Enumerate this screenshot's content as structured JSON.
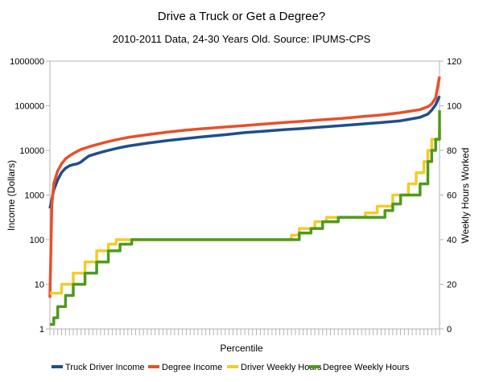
{
  "chart_data": {
    "type": "line",
    "title": "Drive a Truck or Get a Degree?",
    "subtitle": "2010-2011 Data, 24-30 Years Old. Source: IPUMS-CPS",
    "xlabel": "Percentile",
    "ylabel_left": "Income (Dollars)",
    "ylabel_right": "Weekly Hours Worked",
    "y_left_scale": "log",
    "y_left_ticks": [
      "1",
      "10",
      "100",
      "1000",
      "10000",
      "100000",
      "1000000"
    ],
    "y_left_range": [
      1,
      1000000
    ],
    "y_right_ticks": [
      "0",
      "20",
      "40",
      "60",
      "80",
      "100",
      "120"
    ],
    "y_right_range": [
      0,
      120
    ],
    "x_range": [
      0,
      100
    ],
    "grid": false,
    "legend_position": "bottom",
    "series": [
      {
        "name": "Truck Driver Income",
        "axis": "left",
        "color": "#1f4e8c",
        "points": [
          [
            0,
            500
          ],
          [
            1,
            1300
          ],
          [
            2,
            2200
          ],
          [
            3,
            3200
          ],
          [
            4,
            4000
          ],
          [
            5,
            4500
          ],
          [
            6,
            4800
          ],
          [
            7,
            5000
          ],
          [
            8,
            5500
          ],
          [
            9,
            6500
          ],
          [
            10,
            7500
          ],
          [
            12,
            8500
          ],
          [
            14,
            9500
          ],
          [
            16,
            10500
          ],
          [
            18,
            11500
          ],
          [
            20,
            12500
          ],
          [
            25,
            14500
          ],
          [
            30,
            16500
          ],
          [
            35,
            18500
          ],
          [
            40,
            20500
          ],
          [
            45,
            22500
          ],
          [
            50,
            25000
          ],
          [
            55,
            27000
          ],
          [
            60,
            29000
          ],
          [
            65,
            31000
          ],
          [
            70,
            33500
          ],
          [
            75,
            36000
          ],
          [
            80,
            39000
          ],
          [
            85,
            42000
          ],
          [
            90,
            46000
          ],
          [
            95,
            55000
          ],
          [
            97,
            65000
          ],
          [
            98,
            80000
          ],
          [
            99,
            105000
          ],
          [
            100,
            165000
          ]
        ]
      },
      {
        "name": "Degree Income",
        "axis": "left",
        "color": "#e8502a",
        "points": [
          [
            0,
            5
          ],
          [
            0.5,
            600
          ],
          [
            1,
            1800
          ],
          [
            2,
            3500
          ],
          [
            3,
            5000
          ],
          [
            4,
            6500
          ],
          [
            5,
            7500
          ],
          [
            6,
            8500
          ],
          [
            7,
            9500
          ],
          [
            8,
            10500
          ],
          [
            10,
            12000
          ],
          [
            12,
            13500
          ],
          [
            14,
            15000
          ],
          [
            16,
            16500
          ],
          [
            18,
            18000
          ],
          [
            20,
            19500
          ],
          [
            25,
            22500
          ],
          [
            30,
            25500
          ],
          [
            35,
            28500
          ],
          [
            40,
            31000
          ],
          [
            45,
            33500
          ],
          [
            50,
            36000
          ],
          [
            55,
            39000
          ],
          [
            60,
            42000
          ],
          [
            65,
            45000
          ],
          [
            70,
            48500
          ],
          [
            75,
            52000
          ],
          [
            80,
            57000
          ],
          [
            85,
            62000
          ],
          [
            90,
            70000
          ],
          [
            95,
            82000
          ],
          [
            97,
            95000
          ],
          [
            98,
            110000
          ],
          [
            99,
            150000
          ],
          [
            100,
            450000
          ]
        ]
      },
      {
        "name": "Driver Weekly Hours",
        "axis": "right",
        "color": "#f2cc2a",
        "points": [
          [
            0,
            16
          ],
          [
            3,
            20
          ],
          [
            6,
            25
          ],
          [
            9,
            30
          ],
          [
            12,
            35
          ],
          [
            15,
            38
          ],
          [
            17,
            40
          ],
          [
            60,
            40
          ],
          [
            62,
            42
          ],
          [
            64,
            45
          ],
          [
            68,
            48
          ],
          [
            71,
            50
          ],
          [
            79,
            50
          ],
          [
            81,
            52
          ],
          [
            84,
            55
          ],
          [
            88,
            60
          ],
          [
            90,
            60
          ],
          [
            92,
            65
          ],
          [
            94,
            70
          ],
          [
            96,
            75
          ],
          [
            97,
            80
          ],
          [
            98,
            85
          ],
          [
            100,
            90
          ]
        ]
      },
      {
        "name": "Degree Weekly Hours",
        "axis": "right",
        "color": "#4e9a1e",
        "points": [
          [
            0,
            2
          ],
          [
            1,
            5
          ],
          [
            2,
            10
          ],
          [
            4,
            15
          ],
          [
            6,
            20
          ],
          [
            9,
            25
          ],
          [
            12,
            30
          ],
          [
            15,
            35
          ],
          [
            18,
            38
          ],
          [
            21,
            40
          ],
          [
            62,
            40
          ],
          [
            64,
            43
          ],
          [
            67,
            45
          ],
          [
            70,
            48
          ],
          [
            74,
            50
          ],
          [
            84,
            50
          ],
          [
            86,
            53
          ],
          [
            88,
            56
          ],
          [
            90,
            60
          ],
          [
            93,
            60
          ],
          [
            95,
            65
          ],
          [
            97,
            75
          ],
          [
            98,
            80
          ],
          [
            99,
            85
          ],
          [
            100,
            98
          ]
        ]
      }
    ]
  }
}
